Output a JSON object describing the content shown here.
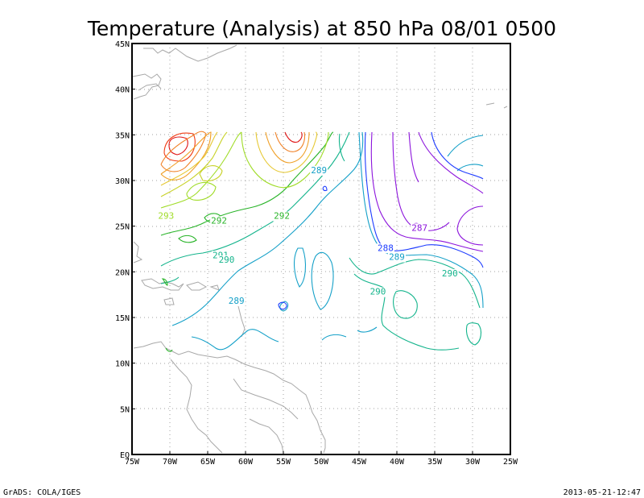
{
  "title": "Temperature (Analysis) at 850 hPa 08/01 0500",
  "footer": {
    "left": "GrADS: COLA/IGES",
    "right": "2013-05-21-12:47"
  },
  "axes": {
    "lon_labels": [
      "75W",
      "70W",
      "65W",
      "60W",
      "55W",
      "50W",
      "45W",
      "40W",
      "35W",
      "30W",
      "25W"
    ],
    "lat_labels": [
      "EQ",
      "5N",
      "10N",
      "15N",
      "20N",
      "25N",
      "30N",
      "35N",
      "40N",
      "45N"
    ],
    "lon_range": [
      -75,
      -25
    ],
    "lat_range": [
      0,
      45
    ],
    "grid": true
  },
  "contour_labels": [
    {
      "text": "293",
      "lon": -70.5,
      "lat": 25.8,
      "color": "#a0dc28"
    },
    {
      "text": "292",
      "lon": -63.5,
      "lat": 25.3,
      "color": "#28b428"
    },
    {
      "text": "292",
      "lon": -55.2,
      "lat": 25.8,
      "color": "#28b428"
    },
    {
      "text": "291",
      "lon": -63.3,
      "lat": 21.5,
      "color": "#14b48c"
    },
    {
      "text": "290",
      "lon": -62.5,
      "lat": 21.0,
      "color": "#14b48c"
    },
    {
      "text": "289",
      "lon": -50.3,
      "lat": 30.8,
      "color": "#14a0c8"
    },
    {
      "text": "289",
      "lon": -61.2,
      "lat": 16.5,
      "color": "#14a0c8"
    },
    {
      "text": "288",
      "lon": -41.5,
      "lat": 22.3,
      "color": "#1e3cff"
    },
    {
      "text": "289",
      "lon": -40.0,
      "lat": 21.3,
      "color": "#14a0c8"
    },
    {
      "text": "287",
      "lon": -37.0,
      "lat": 24.5,
      "color": "#8c14dc"
    },
    {
      "text": "290",
      "lon": -42.5,
      "lat": 17.5,
      "color": "#14b48c"
    },
    {
      "text": "290",
      "lon": -33.0,
      "lat": 19.5,
      "color": "#14b48c"
    }
  ],
  "contour_colors": {
    "red": "#e01414",
    "orange": "#f08228",
    "yellow": "#e6c832",
    "yellow_green": "#a0dc28",
    "green": "#28b428",
    "teal": "#14b48c",
    "cyan": "#14a0c8",
    "blue": "#1e3cff",
    "purple": "#8c14dc"
  }
}
